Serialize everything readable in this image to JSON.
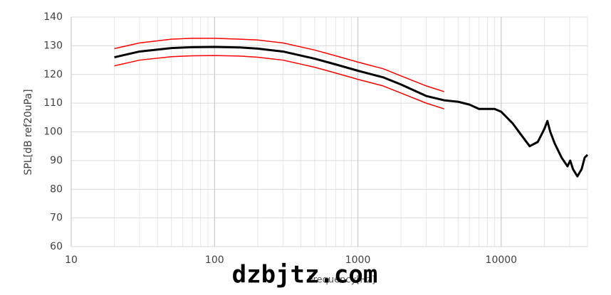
{
  "chart_data": {
    "type": "line",
    "y_label": "SPL[dB ref20uPa]",
    "x_label": "Frequency[Hz]",
    "watermark": "dzbjtz.com",
    "x_log": true,
    "grid": true,
    "xlim": [
      10,
      40000
    ],
    "ylim": [
      60,
      140
    ],
    "xticks": [
      10,
      100,
      1000,
      10000
    ],
    "yticks": [
      60,
      70,
      80,
      90,
      100,
      110,
      120,
      130,
      140
    ],
    "x": [
      20,
      30,
      50,
      70,
      100,
      150,
      200,
      300,
      500,
      700,
      1000,
      1500,
      2000,
      3000,
      4000,
      5000,
      6000,
      7000,
      8000,
      9000,
      10000,
      12000,
      14000,
      15800,
      18000,
      20000,
      21000,
      22000,
      23600,
      26400,
      29000,
      30300,
      31700,
      34000,
      36400,
      38200,
      40000
    ],
    "series": [
      {
        "color": "#ff0000",
        "width": 1.5,
        "values": [
          129,
          131,
          132.3,
          132.6,
          132.6,
          132.3,
          132,
          131,
          128.5,
          126.5,
          124.3,
          122,
          119.5,
          116,
          114,
          null,
          null,
          null,
          null,
          null,
          null,
          null,
          null,
          null,
          null,
          null,
          null,
          null,
          null,
          null,
          null,
          null,
          null,
          null,
          null,
          null,
          null
        ]
      },
      {
        "color": "#ff0000",
        "width": 1.5,
        "values": [
          123,
          125,
          126.2,
          126.5,
          126.6,
          126.4,
          126,
          125,
          122.5,
          120.5,
          118.3,
          116,
          113.5,
          110,
          108,
          null,
          null,
          null,
          null,
          null,
          null,
          null,
          null,
          null,
          null,
          null,
          null,
          null,
          null,
          null,
          null,
          null,
          null,
          null,
          null,
          null,
          null
        ]
      },
      {
        "color": "#000000",
        "width": 3,
        "values": [
          126,
          128,
          129.2,
          129.5,
          129.6,
          129.4,
          129,
          128,
          125.5,
          123.5,
          121.3,
          119,
          116.5,
          112.5,
          111,
          110.5,
          109.5,
          108,
          108,
          108,
          107,
          103,
          98.5,
          95,
          96.5,
          101,
          103.8,
          100,
          96,
          91,
          88,
          90,
          87,
          84.5,
          87,
          91,
          92
        ]
      }
    ]
  }
}
